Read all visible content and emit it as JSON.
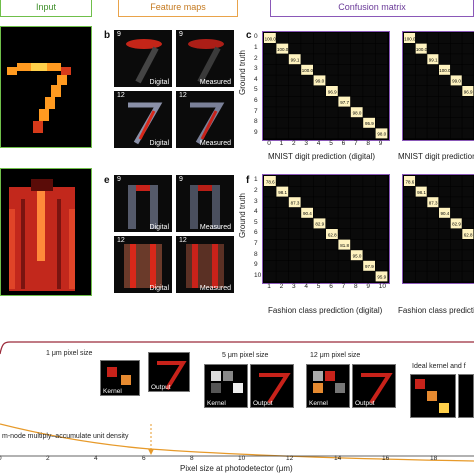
{
  "headers": {
    "input": "Input",
    "feature_maps": "Feature maps",
    "confusion": "Confusion matrix"
  },
  "panels": {
    "b": "b",
    "c": "c",
    "e": "e",
    "f": "f"
  },
  "feature_maps": [
    {
      "num": "9",
      "cap": "Digital"
    },
    {
      "num": "9",
      "cap": "Measured"
    },
    {
      "num": "12",
      "cap": "Digital"
    },
    {
      "num": "12",
      "cap": "Measured"
    },
    {
      "num": "9",
      "cap": "Digital"
    },
    {
      "num": "9",
      "cap": "Measured"
    },
    {
      "num": "12",
      "cap": "Digital"
    },
    {
      "num": "12",
      "cap": "Measured"
    }
  ],
  "cm_c": {
    "ylabel": "Ground truth",
    "xlabel": "MNIST digit prediction (digital)",
    "xlabel_right": "MNIST digit prediction",
    "rows": [
      "0",
      "1",
      "2",
      "3",
      "4",
      "5",
      "6",
      "7",
      "8",
      "9"
    ],
    "cols": [
      "0",
      "1",
      "2",
      "3",
      "4",
      "5",
      "6",
      "7",
      "8",
      "9"
    ],
    "diag": [
      "100.0",
      "100.0",
      "99.1",
      "100.0",
      "99.0",
      "96.9",
      "97.7",
      "98.0",
      "95.9",
      "98.0"
    ],
    "right_diag": [
      "98.0"
    ]
  },
  "cm_f": {
    "ylabel": "Ground truth",
    "xlabel": "Fashion class prediction (digital)",
    "xlabel_right": "Fashion class prediction",
    "rows": [
      "1",
      "2",
      "3",
      "4",
      "5",
      "6",
      "7",
      "8",
      "9",
      "10"
    ],
    "cols": [
      "1",
      "2",
      "3",
      "4",
      "5",
      "6",
      "7",
      "8",
      "9",
      "10"
    ],
    "diag": [
      "78.6",
      "98.1",
      "87.3",
      "90.4",
      "82.9",
      "62.8",
      "81.8",
      "95.0",
      "97.9",
      "95.9"
    ]
  },
  "bottom": {
    "labels": {
      "p1": "1 μm pixel size",
      "p5": "5 μm pixel size",
      "p12": "12 μm pixel size",
      "ideal": "Ideal kernel and f"
    },
    "thumb_caps": [
      "Kernel",
      "Output",
      "Kernel",
      "Output",
      "Kernel",
      "Output"
    ],
    "annotation": "m-node multiply–accumulate unit density",
    "xlabel": "Pixel size at photodetector (μm)",
    "xticks": [
      "0",
      "2",
      "4",
      "6",
      "8",
      "10",
      "12",
      "14",
      "16",
      "18"
    ],
    "colors": {
      "curve_top": "#9b2a3a",
      "curve_decay": "#e79a2a",
      "marker": "#e79a2a"
    }
  }
}
